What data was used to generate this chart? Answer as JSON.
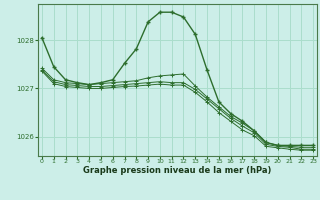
{
  "xlabel": "Graphe pression niveau de la mer (hPa)",
  "background_color": "#cceee8",
  "grid_color": "#aaddcc",
  "line_color": "#2d6e2d",
  "ylim": [
    1025.6,
    1028.75
  ],
  "xlim": [
    -0.3,
    23.3
  ],
  "yticks": [
    1026,
    1027,
    1028
  ],
  "xticks": [
    0,
    1,
    2,
    3,
    4,
    5,
    6,
    7,
    8,
    9,
    10,
    11,
    12,
    13,
    14,
    15,
    16,
    17,
    18,
    19,
    20,
    21,
    22,
    23
  ],
  "line1": [
    1028.05,
    1027.45,
    1027.18,
    1027.12,
    1027.08,
    1027.12,
    1027.18,
    1027.52,
    1027.82,
    1028.38,
    1028.58,
    1028.58,
    1028.48,
    1028.12,
    1027.38,
    1026.72,
    1026.48,
    1026.32,
    1026.12,
    1025.88,
    1025.82,
    1025.82,
    1025.82,
    1025.82
  ],
  "line2": [
    1027.42,
    1027.18,
    1027.12,
    1027.1,
    1027.08,
    1027.1,
    1027.12,
    1027.14,
    1027.16,
    1027.22,
    1027.26,
    1027.28,
    1027.3,
    1027.05,
    1026.82,
    1026.62,
    1026.42,
    1026.28,
    1026.12,
    1025.88,
    1025.82,
    1025.8,
    1025.78,
    1025.78
  ],
  "line3": [
    1027.38,
    1027.14,
    1027.08,
    1027.06,
    1027.04,
    1027.04,
    1027.06,
    1027.08,
    1027.1,
    1027.12,
    1027.14,
    1027.12,
    1027.12,
    1026.98,
    1026.78,
    1026.58,
    1026.38,
    1026.22,
    1026.08,
    1025.84,
    1025.8,
    1025.78,
    1025.74,
    1025.74
  ],
  "line4": [
    1027.36,
    1027.1,
    1027.04,
    1027.02,
    1027.0,
    1027.0,
    1027.02,
    1027.04,
    1027.05,
    1027.07,
    1027.09,
    1027.07,
    1027.07,
    1026.92,
    1026.72,
    1026.5,
    1026.32,
    1026.14,
    1026.02,
    1025.8,
    1025.77,
    1025.74,
    1025.72,
    1025.72
  ]
}
